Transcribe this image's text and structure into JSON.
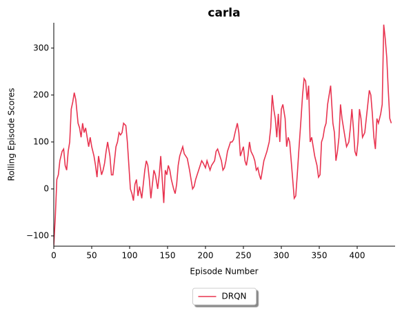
{
  "chart_data": {
    "type": "line",
    "title": "carla",
    "xlabel": "Episode Number",
    "ylabel": "Rolling Episode Scores",
    "x": [
      0,
      2,
      4,
      6,
      8,
      11,
      13,
      15,
      17,
      19,
      21,
      23,
      25,
      27,
      29,
      32,
      34,
      36,
      38,
      40,
      42,
      44,
      46,
      48,
      50,
      53,
      55,
      57,
      59,
      61,
      63,
      65,
      67,
      69,
      71,
      74,
      76,
      78,
      80,
      82,
      84,
      86,
      88,
      90,
      92,
      95,
      97,
      99,
      101,
      103,
      105,
      107,
      109,
      111,
      113,
      116,
      118,
      120,
      122,
      124,
      126,
      128,
      130,
      132,
      134,
      137,
      139,
      141,
      143,
      145,
      147,
      149,
      151,
      153,
      155,
      158,
      160,
      162,
      164,
      166,
      168,
      170,
      172,
      174,
      176,
      179,
      181,
      183,
      185,
      187,
      189,
      191,
      193,
      195,
      197,
      200,
      202,
      204,
      206,
      208,
      210,
      212,
      214,
      216,
      218,
      221,
      223,
      225,
      227,
      229,
      231,
      233,
      235,
      237,
      239,
      242,
      244,
      246,
      248,
      250,
      252,
      254,
      256,
      258,
      260,
      263,
      265,
      267,
      269,
      271,
      273,
      275,
      277,
      279,
      281,
      284,
      286,
      288,
      290,
      292,
      294,
      296,
      298,
      300,
      302,
      305,
      307,
      309,
      311,
      313,
      315,
      317,
      319,
      321,
      323,
      326,
      328,
      330,
      332,
      334,
      336,
      338,
      340,
      342,
      344,
      347,
      349,
      351,
      353,
      355,
      357,
      359,
      361,
      363,
      365,
      368,
      370,
      372,
      374,
      376,
      378,
      380,
      382,
      384,
      386,
      389,
      391,
      393,
      395,
      397,
      399,
      401,
      403,
      405,
      407,
      410,
      412,
      414,
      416,
      418,
      420,
      422,
      424,
      426,
      428,
      431,
      433,
      435,
      437,
      439,
      441,
      443,
      445
    ],
    "series": [
      {
        "name": "DRQN",
        "color": "#e8334f",
        "values": [
          -120,
          -60,
          20,
          30,
          60,
          80,
          85,
          50,
          40,
          80,
          100,
          170,
          185,
          205,
          190,
          140,
          130,
          110,
          140,
          120,
          130,
          110,
          90,
          110,
          90,
          70,
          50,
          25,
          70,
          50,
          30,
          40,
          55,
          80,
          100,
          70,
          30,
          30,
          60,
          90,
          100,
          120,
          115,
          120,
          140,
          135,
          100,
          50,
          0,
          -10,
          -25,
          10,
          20,
          -15,
          5,
          -20,
          10,
          40,
          60,
          50,
          20,
          -20,
          10,
          40,
          30,
          0,
          30,
          70,
          20,
          -30,
          40,
          30,
          50,
          40,
          20,
          0,
          -10,
          10,
          50,
          70,
          80,
          90,
          75,
          70,
          65,
          40,
          20,
          0,
          5,
          20,
          30,
          40,
          50,
          60,
          55,
          45,
          60,
          50,
          40,
          50,
          55,
          60,
          80,
          85,
          75,
          60,
          40,
          45,
          60,
          80,
          90,
          100,
          100,
          105,
          120,
          140,
          120,
          70,
          80,
          90,
          60,
          50,
          70,
          100,
          80,
          70,
          60,
          40,
          45,
          30,
          20,
          40,
          60,
          70,
          80,
          100,
          130,
          200,
          170,
          150,
          110,
          160,
          100,
          170,
          180,
          150,
          90,
          110,
          100,
          60,
          20,
          -20,
          -15,
          30,
          80,
          150,
          200,
          235,
          230,
          190,
          220,
          100,
          110,
          90,
          70,
          50,
          25,
          30,
          100,
          110,
          130,
          140,
          180,
          200,
          220,
          140,
          120,
          60,
          80,
          110,
          180,
          150,
          130,
          110,
          90,
          100,
          130,
          170,
          130,
          80,
          70,
          100,
          170,
          150,
          110,
          120,
          150,
          180,
          210,
          200,
          160,
          110,
          85,
          150,
          140,
          160,
          180,
          350,
          320,
          280,
          210,
          150,
          140
        ]
      }
    ],
    "xlim": [
      0,
      450
    ],
    "xticks": [
      0,
      50,
      100,
      150,
      200,
      250,
      300,
      350,
      400
    ],
    "ylim": [
      -122,
      354
    ],
    "yticks": [
      {
        "value": -100,
        "label": "−100"
      },
      0,
      100,
      200,
      300
    ],
    "legend": "lower center"
  }
}
